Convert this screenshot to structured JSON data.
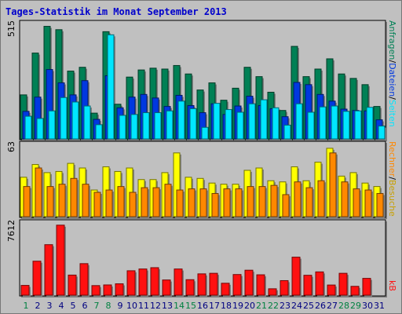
{
  "title": "Tages-Statistik im Monat September 2013",
  "colors": {
    "anfragen": "#008055",
    "dateien": "#0038e0",
    "seiten": "#00e6ff",
    "besuche": "#ffff00",
    "rechner": "#ff8800",
    "kb": "#ff1010",
    "weekend_label": "#008040",
    "weekday_label": "#000080"
  },
  "chart_data": [
    {
      "type": "bar",
      "ymax_label": "515",
      "right_label_parts": [
        "Anfragen",
        "/",
        "Dateien",
        "/",
        "Seiten"
      ],
      "categories": [
        "1",
        "2",
        "3",
        "4",
        "5",
        "6",
        "7",
        "8",
        "9",
        "10",
        "11",
        "12",
        "13",
        "14",
        "15",
        "16",
        "17",
        "18",
        "19",
        "20",
        "21",
        "22",
        "23",
        "24",
        "25",
        "26",
        "27",
        "28",
        "29",
        "30",
        "31"
      ],
      "series": [
        {
          "name": "Anfragen",
          "values": [
            198,
            386,
            506,
            491,
            305,
            322,
            116,
            482,
            156,
            278,
            310,
            318,
            314,
            330,
            292,
            220,
            252,
            174,
            228,
            322,
            280,
            210,
            128,
            416,
            280,
            314,
            360,
            292,
            272,
            244,
            146
          ]
        },
        {
          "name": "Dateien",
          "values": [
            124,
            188,
            312,
            252,
            198,
            262,
            88,
            284,
            140,
            188,
            200,
            184,
            146,
            196,
            150,
            118,
            158,
            110,
            148,
            192,
            150,
            136,
            100,
            254,
            244,
            200,
            170,
            134,
            128,
            126,
            86
          ]
        },
        {
          "name": "Seiten",
          "values": [
            102,
            92,
            126,
            186,
            166,
            148,
            64,
            468,
            106,
            110,
            118,
            118,
            126,
            170,
            136,
            52,
            160,
            132,
            120,
            158,
            176,
            140,
            62,
            158,
            120,
            144,
            148,
            124,
            126,
            142,
            58
          ]
        }
      ]
    },
    {
      "type": "bar",
      "ymax_label": "63",
      "right_label_parts": [
        "Rechner",
        "/",
        "Besuche"
      ],
      "categories": [
        "1",
        "2",
        "3",
        "4",
        "5",
        "6",
        "7",
        "8",
        "9",
        "10",
        "11",
        "12",
        "13",
        "14",
        "15",
        "16",
        "17",
        "18",
        "19",
        "20",
        "21",
        "22",
        "23",
        "24",
        "25",
        "26",
        "27",
        "28",
        "29",
        "30",
        "31"
      ],
      "series": [
        {
          "name": "Besuche",
          "values": [
            34,
            45,
            38,
            39,
            46,
            42,
            23,
            43,
            39,
            42,
            32,
            32,
            38,
            55,
            34,
            33,
            29,
            28,
            28,
            40,
            42,
            31,
            30,
            43,
            31,
            47,
            59,
            35,
            38,
            29,
            26
          ]
        },
        {
          "name": "Rechner",
          "values": [
            26,
            42,
            26,
            28,
            33,
            28,
            21,
            23,
            26,
            21,
            25,
            25,
            28,
            23,
            24,
            24,
            20,
            24,
            24,
            26,
            26,
            27,
            19,
            30,
            25,
            31,
            55,
            30,
            24,
            23,
            20
          ]
        }
      ]
    },
    {
      "type": "bar",
      "ymax_label": "7612",
      "right_label_parts": [
        "kB"
      ],
      "categories": [
        "1",
        "2",
        "3",
        "4",
        "5",
        "6",
        "7",
        "8",
        "9",
        "10",
        "11",
        "12",
        "13",
        "14",
        "15",
        "16",
        "17",
        "18",
        "19",
        "20",
        "21",
        "22",
        "23",
        "24",
        "25",
        "26",
        "27",
        "28",
        "29",
        "30",
        "31"
      ],
      "series": [
        {
          "name": "kB",
          "values": [
            1040,
            3620,
            5380,
            7460,
            2140,
            3360,
            1020,
            1090,
            1210,
            2600,
            2790,
            2930,
            1620,
            2790,
            1650,
            2270,
            2330,
            1270,
            2200,
            2660,
            2170,
            680,
            1550,
            4050,
            2120,
            2480,
            1080,
            2330,
            940,
            1790,
            0
          ]
        }
      ]
    }
  ],
  "weekend_days": [
    1,
    7,
    8,
    14,
    15,
    21,
    22,
    28,
    29
  ]
}
